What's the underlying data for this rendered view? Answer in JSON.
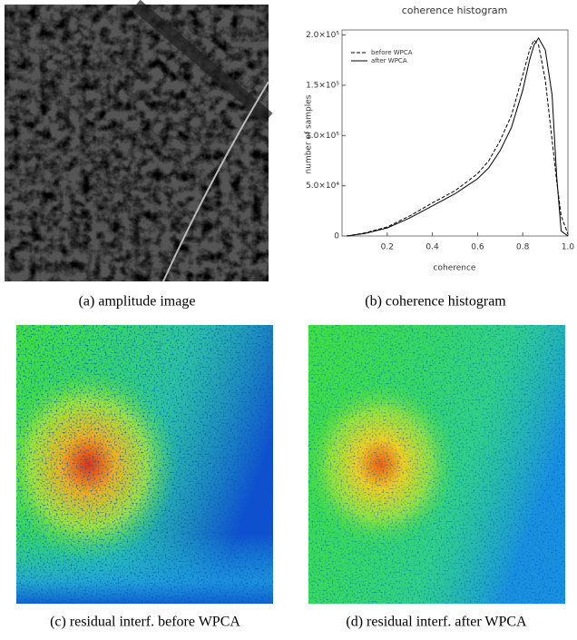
{
  "panels": [
    {
      "caption": "(a) amplitude image"
    },
    {
      "caption": "(b) coherence histogram"
    },
    {
      "caption": "(c) residual interf. before WPCA"
    },
    {
      "caption": "(d) residual interf. after WPCA"
    }
  ],
  "chart_data": {
    "type": "line",
    "title": "coherence histogram",
    "x_label": "coherence",
    "y_label": "number of samples",
    "x": [
      0.02,
      0.1,
      0.2,
      0.3,
      0.4,
      0.5,
      0.6,
      0.65,
      0.7,
      0.75,
      0.8,
      0.83,
      0.85,
      0.87,
      0.9,
      0.93,
      0.95,
      0.97,
      1.0
    ],
    "series": [
      {
        "name": "before WPCA",
        "color": "#000000",
        "line_style": "dashed",
        "values": [
          0,
          3000,
          9000,
          20000,
          33000,
          45000,
          62000,
          75000,
          95000,
          120000,
          160000,
          185000,
          195000,
          190000,
          155000,
          95000,
          55000,
          20000,
          2000
        ]
      },
      {
        "name": "after WPCA",
        "color": "#000000",
        "line_style": "solid",
        "values": [
          0,
          2500,
          8000,
          18000,
          30000,
          42000,
          57000,
          68000,
          85000,
          108000,
          145000,
          175000,
          190000,
          197000,
          185000,
          140000,
          60000,
          5000,
          0
        ]
      }
    ],
    "xlim": [
      0,
      1
    ],
    "ylim": [
      0,
      205000
    ],
    "xticks": [
      0.2,
      0.4,
      0.6,
      0.8,
      {
        "value": 1,
        "label": "1.0"
      }
    ],
    "yticks": [
      0,
      {
        "value": 50000,
        "label": "5.0×10⁴"
      },
      {
        "value": 100000,
        "label": "1.0×10⁵"
      },
      {
        "value": 150000,
        "label": "1.5×10⁵"
      },
      {
        "value": 200000,
        "label": "2.0×10⁵"
      }
    ],
    "legend": "upper left"
  }
}
